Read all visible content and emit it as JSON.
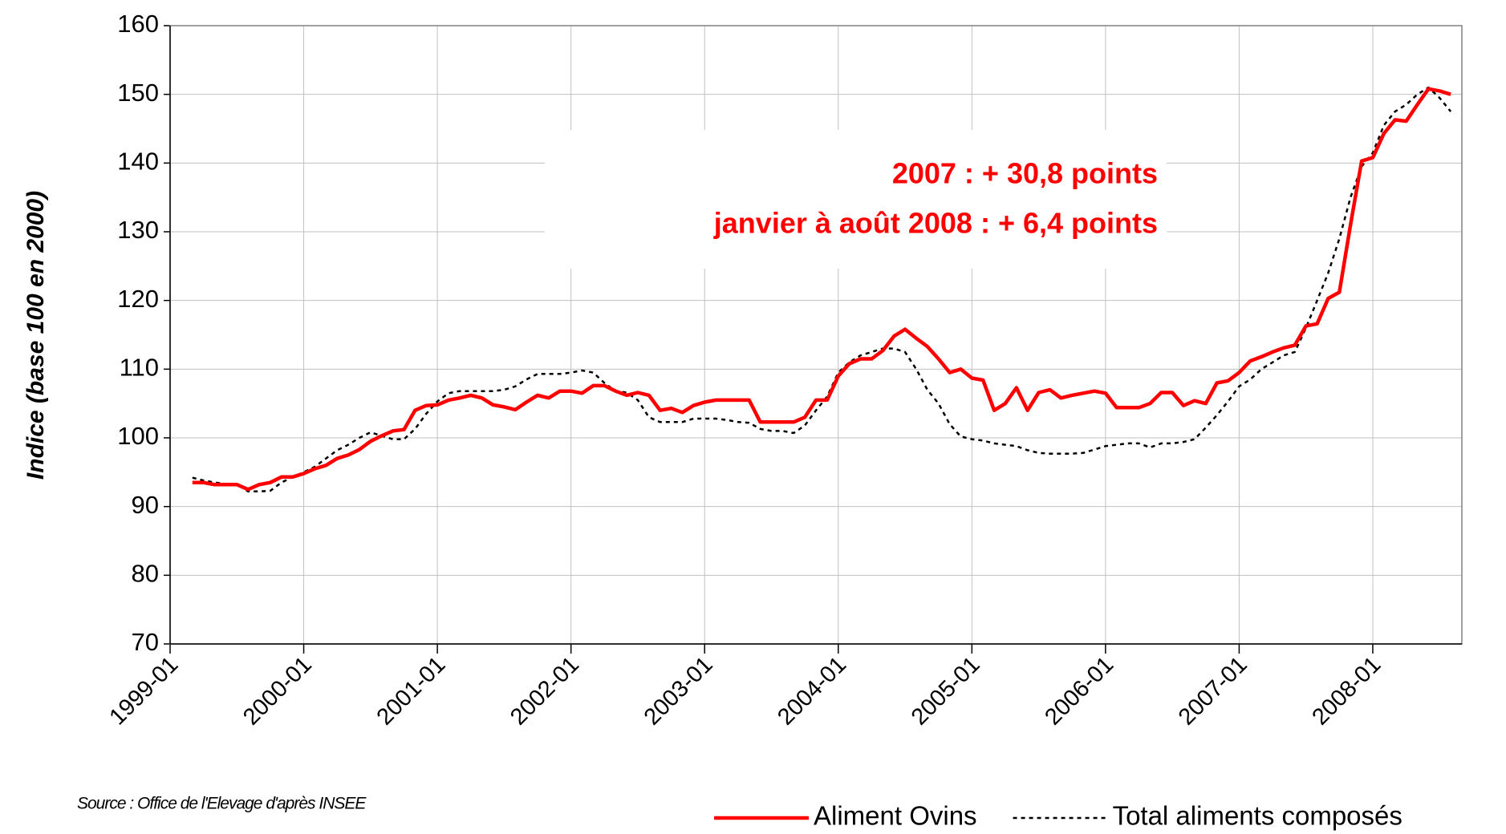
{
  "chart_data": {
    "type": "line",
    "y_label": "Indice (base 100 en 2000)",
    "annotations": [
      "2007 : + 30,8 points",
      "janvier à août 2008 : + 6,4 points"
    ],
    "source": "Source : Office de l'Elevage d'après INSEE",
    "x": [
      "1999-03",
      "1999-04",
      "1999-05",
      "1999-06",
      "1999-07",
      "1999-08",
      "1999-09",
      "1999-10",
      "1999-11",
      "1999-12",
      "2000-01",
      "2000-02",
      "2000-03",
      "2000-04",
      "2000-05",
      "2000-06",
      "2000-07",
      "2000-08",
      "2000-09",
      "2000-10",
      "2000-11",
      "2000-12",
      "2001-01",
      "2001-02",
      "2001-03",
      "2001-04",
      "2001-05",
      "2001-06",
      "2001-07",
      "2001-08",
      "2001-09",
      "2001-10",
      "2001-11",
      "2001-12",
      "2002-01",
      "2002-02",
      "2002-03",
      "2002-04",
      "2002-05",
      "2002-06",
      "2002-07",
      "2002-08",
      "2002-09",
      "2002-10",
      "2002-11",
      "2002-12",
      "2003-01",
      "2003-02",
      "2003-03",
      "2003-04",
      "2003-05",
      "2003-06",
      "2003-07",
      "2003-08",
      "2003-09",
      "2003-10",
      "2003-11",
      "2003-12",
      "2004-01",
      "2004-02",
      "2004-03",
      "2004-04",
      "2004-05",
      "2004-06",
      "2004-07",
      "2004-08",
      "2004-09",
      "2004-10",
      "2004-11",
      "2004-12",
      "2005-01",
      "2005-02",
      "2005-03",
      "2005-04",
      "2005-05",
      "2005-06",
      "2005-07",
      "2005-08",
      "2005-09",
      "2005-10",
      "2005-11",
      "2005-12",
      "2006-01",
      "2006-02",
      "2006-03",
      "2006-04",
      "2006-05",
      "2006-06",
      "2006-07",
      "2006-08",
      "2006-09",
      "2006-10",
      "2006-11",
      "2006-12",
      "2007-01",
      "2007-02",
      "2007-03",
      "2007-04",
      "2007-05",
      "2007-06",
      "2007-07",
      "2007-08",
      "2007-09",
      "2007-10",
      "2007-11",
      "2007-12",
      "2008-01",
      "2008-02",
      "2008-03",
      "2008-04",
      "2008-05",
      "2008-06",
      "2008-07",
      "2008-08"
    ],
    "series": [
      {
        "name": "Aliment Ovins",
        "color": "#ff0000",
        "line_style": "solid",
        "values": [
          93.5,
          93.5,
          93.2,
          93.2,
          93.2,
          92.5,
          93.2,
          93.5,
          94.3,
          94.3,
          94.8,
          95.5,
          96,
          97,
          97.5,
          98.3,
          99.5,
          100.3,
          101,
          101.2,
          104,
          104.7,
          104.8,
          105.5,
          105.8,
          106.2,
          105.8,
          104.8,
          104.5,
          104.1,
          105.2,
          106.2,
          105.8,
          106.8,
          106.8,
          106.5,
          107.6,
          107.6,
          106.8,
          106.2,
          106.6,
          106.2,
          104,
          104.3,
          103.7,
          104.7,
          105.2,
          105.5,
          105.5,
          105.5,
          105.5,
          102.3,
          102.3,
          102.3,
          102.3,
          103,
          105.5,
          105.5,
          109,
          110.8,
          111.5,
          111.5,
          112.7,
          114.8,
          115.8,
          114.5,
          113.3,
          111.5,
          109.5,
          110,
          108.7,
          108.4,
          104,
          105,
          107.3,
          104,
          106.6,
          107,
          105.8,
          106.2,
          106.5,
          106.8,
          106.5,
          104.4,
          104.4,
          104.4,
          105,
          106.6,
          106.6,
          104.7,
          105.4,
          105,
          108,
          108.3,
          109.5,
          111.2,
          111.8,
          112.5,
          113.1,
          113.5,
          116.3,
          116.6,
          120.3,
          121.2,
          131,
          140.3,
          140.8,
          144.3,
          146.3,
          146.1,
          148.5,
          150.8,
          150.5,
          150
        ]
      },
      {
        "name": "Total aliments composés",
        "color": "#000000",
        "line_style": "dashed",
        "values": [
          94.2,
          93.8,
          93.5,
          93.3,
          93.3,
          92.2,
          92.2,
          92.3,
          93.5,
          94.3,
          95,
          95.8,
          97,
          98.2,
          99,
          100,
          100.8,
          100.3,
          99.8,
          99.8,
          101.3,
          103.5,
          105.3,
          106.5,
          106.8,
          106.8,
          106.8,
          106.8,
          107,
          107.5,
          108.5,
          109.3,
          109.3,
          109.3,
          109.5,
          109.8,
          109.5,
          108,
          106.8,
          106.6,
          105.5,
          103,
          102.3,
          102.3,
          102.3,
          102.8,
          102.8,
          102.8,
          102.6,
          102.3,
          102.2,
          101.3,
          101,
          101,
          100.7,
          101.8,
          104,
          106,
          109.5,
          111,
          112,
          112.5,
          113,
          113,
          112.5,
          110,
          107,
          105,
          102,
          100.2,
          99.8,
          99.6,
          99.2,
          99,
          98.8,
          98.2,
          97.8,
          97.7,
          97.7,
          97.7,
          97.8,
          98.3,
          98.8,
          99,
          99.2,
          99.2,
          98.6,
          99.2,
          99.2,
          99.4,
          99.8,
          101.5,
          103.3,
          105.3,
          107.5,
          108.5,
          110,
          111,
          112,
          112.5,
          116,
          120,
          124,
          129,
          135,
          139.5,
          141.5,
          145.5,
          147.5,
          148.5,
          150,
          151,
          149.5,
          147.5
        ]
      }
    ],
    "xlim": [
      "1999-01",
      "2008-09"
    ],
    "xticks": [
      "1999-01",
      "2000-01",
      "2001-01",
      "2002-01",
      "2003-01",
      "2004-01",
      "2005-01",
      "2006-01",
      "2007-01",
      "2008-01"
    ],
    "ylim": [
      70,
      160
    ],
    "yticks": [
      70,
      80,
      90,
      100,
      110,
      120,
      130,
      140,
      150,
      160
    ],
    "grid": true,
    "legend": "bottom-right"
  }
}
